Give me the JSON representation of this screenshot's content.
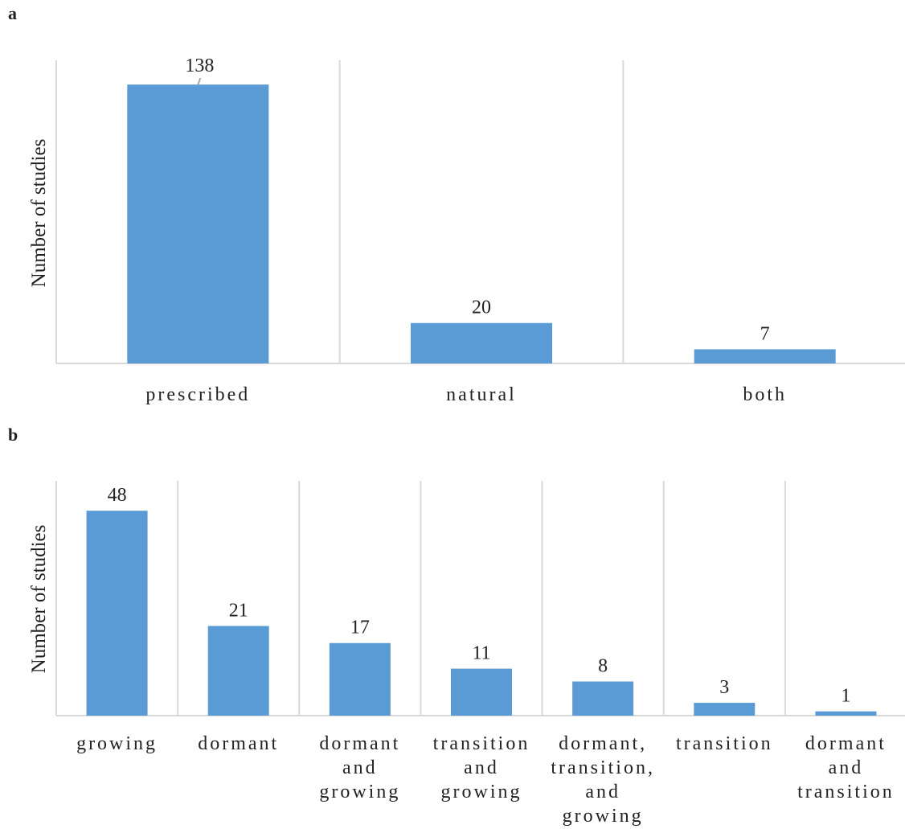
{
  "colors": {
    "bar": "#5B9BD5"
  },
  "chart_data": [
    {
      "panel_label": "a",
      "type": "bar",
      "ylabel": "Number of studies",
      "categories": [
        "prescribed",
        "natural",
        "both"
      ],
      "values": [
        138,
        20,
        7
      ],
      "ylim": [
        0,
        150
      ],
      "grid": "vertical separators between categories",
      "data_labels": true
    },
    {
      "panel_label": "b",
      "type": "bar",
      "ylabel": "Number of studies",
      "categories": [
        [
          "growing"
        ],
        [
          "dormant"
        ],
        [
          "dormant",
          "and",
          "growing"
        ],
        [
          "transition",
          "and",
          "growing"
        ],
        [
          "dormant,",
          "transition,",
          "and",
          "growing"
        ],
        [
          "transition"
        ],
        [
          "dormant",
          "and",
          "transition"
        ]
      ],
      "values": [
        48,
        21,
        17,
        11,
        8,
        3,
        1
      ],
      "ylim": [
        0,
        55
      ],
      "grid": "vertical separators between categories",
      "data_labels": true
    }
  ]
}
